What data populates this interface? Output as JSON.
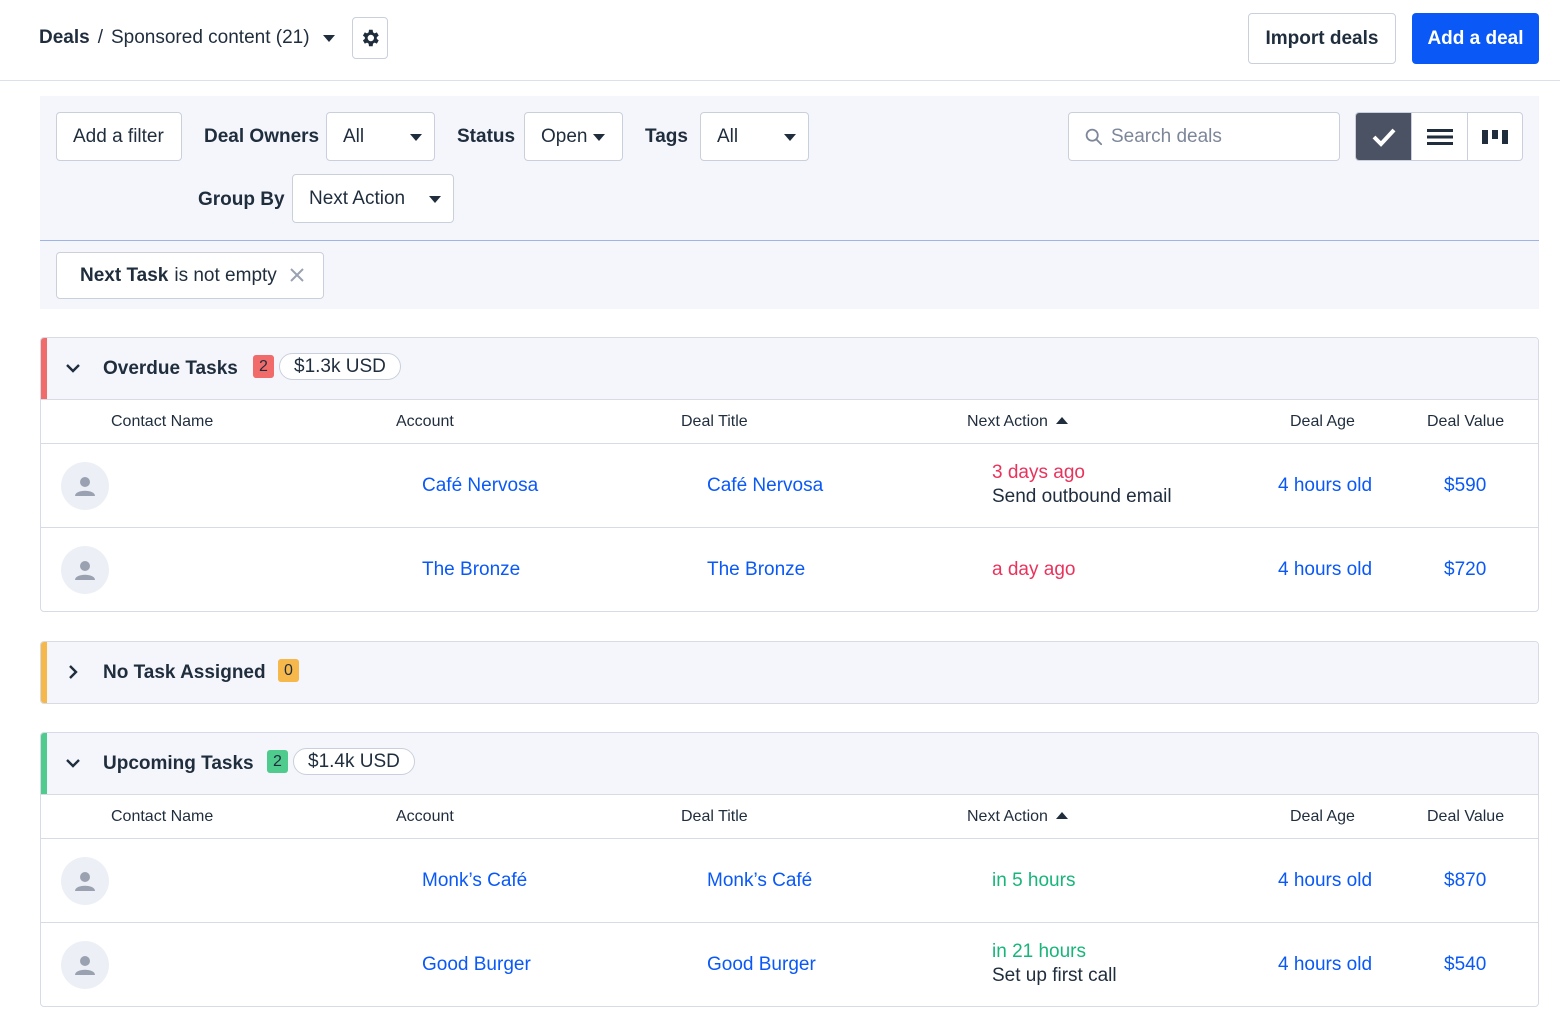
{
  "header": {
    "breadcrumb_root": "Deals",
    "breadcrumb_sep": "/",
    "breadcrumb_current": "Sponsored content (21)",
    "import_label": "Import deals",
    "add_label": "Add a deal"
  },
  "filters": {
    "add_filter": "Add a filter",
    "deal_owners_label": "Deal Owners",
    "deal_owners_value": "All",
    "status_label": "Status",
    "status_value": "Open",
    "tags_label": "Tags",
    "tags_value": "All",
    "group_by_label": "Group By",
    "group_by_value": "Next Action",
    "search_placeholder": "Search deals",
    "active_chip_field": "Next Task",
    "active_chip_condition": "is not empty"
  },
  "columns": {
    "contact": "Contact Name",
    "account": "Account",
    "title": "Deal Title",
    "next_action": "Next Action",
    "age": "Deal Age",
    "value": "Deal Value"
  },
  "groups": [
    {
      "title": "Overdue Tasks",
      "count": "2",
      "total": "$1.3k USD",
      "color": "#f26b6b",
      "rows": [
        {
          "account": "Café Nervosa",
          "title": "Café Nervosa",
          "when": "3 days ago",
          "task": "Send outbound email",
          "age": "4 hours old",
          "value": "$590"
        },
        {
          "account": "The Bronze",
          "title": "The Bronze",
          "when": "a day ago",
          "task": "",
          "age": "4 hours old",
          "value": "$720"
        }
      ]
    },
    {
      "title": "No Task Assigned",
      "count": "0",
      "color": "#f6b84b"
    },
    {
      "title": "Upcoming Tasks",
      "count": "2",
      "total": "$1.4k USD",
      "color": "#4ecb8d",
      "rows": [
        {
          "account": "Monk’s Café",
          "title": "Monk’s Café",
          "when": "in 5 hours",
          "task": "",
          "age": "4 hours old",
          "value": "$870"
        },
        {
          "account": "Good Burger",
          "title": "Good Burger",
          "when": "in 21 hours",
          "task": "Set up first call",
          "age": "4 hours old",
          "value": "$540"
        }
      ]
    }
  ],
  "colors": {
    "primary": "#0a59f7",
    "overdue": "#e8335c",
    "upcoming": "#18b57a"
  },
  "icons": [
    "gear-icon",
    "chevron-down-icon",
    "chevron-right-icon",
    "search-icon",
    "check-icon",
    "list-icon",
    "board-icon",
    "close-icon",
    "avatar-icon"
  ]
}
